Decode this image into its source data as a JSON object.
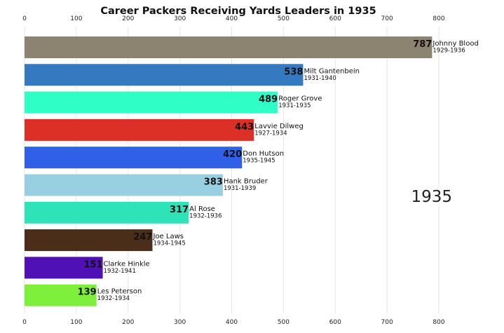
{
  "chart_data": {
    "type": "bar",
    "orientation": "horizontal",
    "title": "Career Packers Receiving Yards Leaders in 1935",
    "year_label": "1935",
    "xlim": [
      0,
      800
    ],
    "xticks": [
      0,
      100,
      200,
      300,
      400,
      500,
      600,
      700,
      800
    ],
    "grid": true,
    "xaxis_position": "top-and-bottom",
    "bars": [
      {
        "name": "Johnny Blood",
        "years": "1929-1936",
        "value": 787,
        "color": "#8c8470"
      },
      {
        "name": "Milt Gantenbein",
        "years": "1931-1940",
        "value": 538,
        "color": "#3579c1"
      },
      {
        "name": "Roger Grove",
        "years": "1931-1935",
        "value": 489,
        "color": "#2ffec6"
      },
      {
        "name": "Lavvie Dilweg",
        "years": "1927-1934",
        "value": 443,
        "color": "#dc3027"
      },
      {
        "name": "Don Hutson",
        "years": "1935-1945",
        "value": 420,
        "color": "#3160e8"
      },
      {
        "name": "Hank Bruder",
        "years": "1931-1939",
        "value": 383,
        "color": "#98d0e2"
      },
      {
        "name": "Al Rose",
        "years": "1932-1936",
        "value": 317,
        "color": "#2fe3b8"
      },
      {
        "name": "Joe Laws",
        "years": "1934-1945",
        "value": 247,
        "color": "#4a2e1a"
      },
      {
        "name": "Clarke Hinkle",
        "years": "1932-1941",
        "value": 151,
        "color": "#4f10b5"
      },
      {
        "name": "Les Peterson",
        "years": "1932-1934",
        "value": 139,
        "color": "#7ef03c"
      }
    ]
  }
}
